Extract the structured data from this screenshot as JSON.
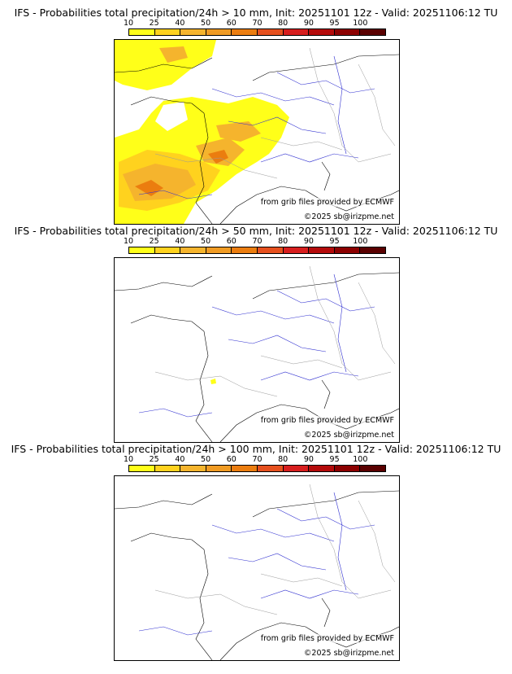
{
  "colorbar": {
    "ticks": [
      "10",
      "25",
      "40",
      "50",
      "60",
      "70",
      "80",
      "90",
      "95",
      "100"
    ],
    "colors": [
      "#ffff19",
      "#ffd21e",
      "#f5b42d",
      "#f09b23",
      "#eb7d0f",
      "#e6501e",
      "#d71e1e",
      "#b40a0a",
      "#8c0000",
      "#5a0000"
    ]
  },
  "panels": [
    {
      "title": "IFS - Probabilities total precipitation/24h > 10 mm, Init: 20251101 12z - Valid: 20251106:12 TU",
      "source_credit": "from grib files provided by ECMWF",
      "copyright": "©2025 sb@irizpme.net"
    },
    {
      "title": "IFS - Probabilities total precipitation/24h > 50 mm, Init: 20251101 12z - Valid: 20251106:12 TU",
      "source_credit": "from grib files provided by ECMWF",
      "copyright": "©2025 sb@irizpme.net"
    },
    {
      "title": "IFS - Probabilities total precipitation/24h > 100 mm, Init: 20251101 12z - Valid: 20251106:12 TU",
      "source_credit": "from grib files provided by ECMWF",
      "copyright": "©2025 sb@irizpme.net"
    }
  ]
}
